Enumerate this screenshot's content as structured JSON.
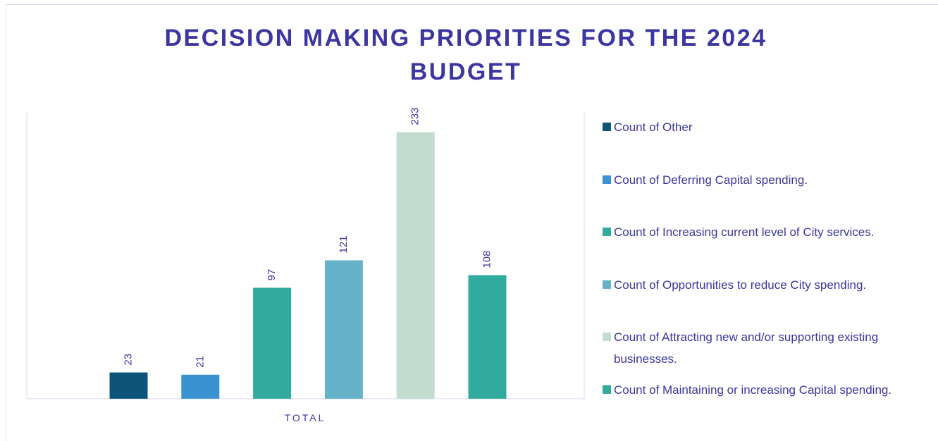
{
  "chart_data": {
    "type": "bar",
    "title": "DECISION MAKING PRIORITIES FOR THE 2024 BUDGET",
    "categories": [
      "TOTAL"
    ],
    "series": [
      {
        "name": "Count of Other",
        "color": "#0e5478",
        "values": [
          23
        ]
      },
      {
        "name": "Count of Deferring Capital spending.",
        "color": "#3a93d0",
        "values": [
          21
        ]
      },
      {
        "name": "Count of Increasing current level of City services.",
        "color": "#32ab9f",
        "values": [
          97
        ]
      },
      {
        "name": "Count of Opportunities to reduce City spending.",
        "color": "#66b2c9",
        "values": [
          121
        ]
      },
      {
        "name": "Count of Attracting new and/or supporting existing businesses.",
        "color": "#c2dccf",
        "values": [
          233
        ]
      },
      {
        "name": "Count of Maintaining or increasing Capital spending.",
        "color": "#32ab9f",
        "values": [
          108
        ]
      }
    ],
    "ylim": [
      0,
      250
    ],
    "legend": "right"
  }
}
